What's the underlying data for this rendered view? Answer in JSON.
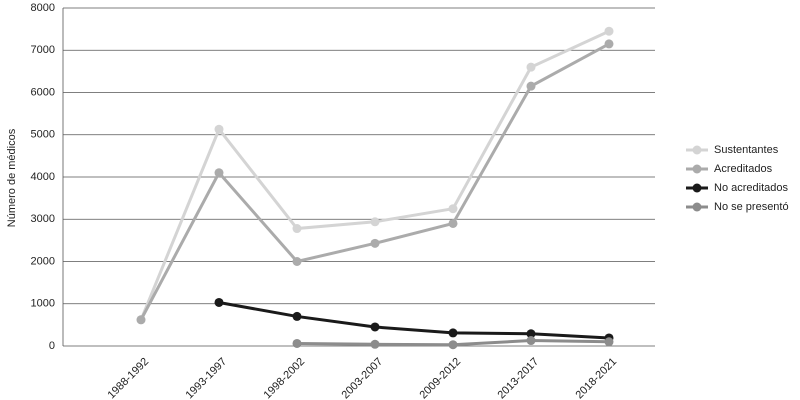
{
  "chart_data": {
    "type": "line",
    "y_label": "Número de médicos",
    "categories": [
      "1988-1992",
      "1993-1997",
      "1998-2002",
      "2003-2007",
      "2009-2012",
      "2013-2017",
      "2018-2021"
    ],
    "series": [
      {
        "name": "Sustentantes",
        "color": "#d4d4d4",
        "values": [
          620,
          5130,
          2780,
          2940,
          3250,
          6600,
          7450
        ]
      },
      {
        "name": "Acreditados",
        "color": "#ababab",
        "values": [
          620,
          4100,
          2000,
          2430,
          2900,
          6150,
          7150
        ]
      },
      {
        "name": "No acreditados",
        "color": "#1a1a1a",
        "values": [
          null,
          1030,
          700,
          450,
          310,
          290,
          190
        ]
      },
      {
        "name": "No se presentó",
        "color": "#8c8c8c",
        "values": [
          null,
          null,
          60,
          40,
          30,
          130,
          100
        ]
      }
    ],
    "ylim": [
      0,
      8000
    ],
    "yticks": [
      0,
      1000,
      2000,
      3000,
      4000,
      5000,
      6000,
      7000,
      8000
    ],
    "grid": true
  }
}
